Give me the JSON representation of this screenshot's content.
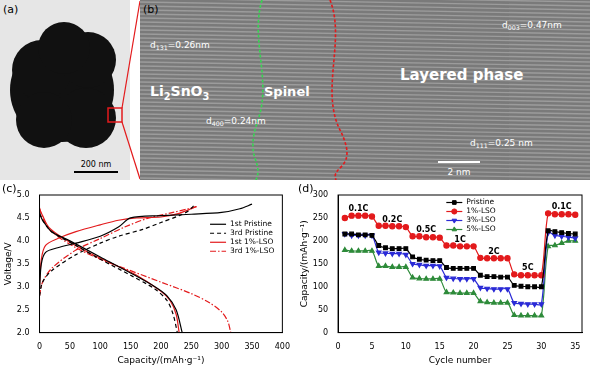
{
  "images": [
    {
      "panel": "(a)",
      "scale_bar": "200 nm"
    },
    {
      "panel": "(b)",
      "scale_bar": "2 nm",
      "labels": [
        {
          "text": "d",
          "subscript": "131",
          "after": "=0.26nm"
        },
        {
          "text": "Li2SnO3"
        },
        {
          "text": "Spinel"
        },
        {
          "text": "Layered phase"
        },
        {
          "text": "d",
          "subscript": "003",
          "after": "=0.47nm"
        },
        {
          "text": "d",
          "subscript": "400",
          "after": "=0.24nm"
        },
        {
          "text": "d",
          "subscript": "111",
          "after": "=0.25 nm"
        }
      ]
    }
  ],
  "chart_data": [
    {
      "type": "line",
      "panel": "(c)",
      "x_label": "Capacity/(mAh·g⁻¹)",
      "y_label": "Voltage/V",
      "xlim": [
        0,
        400
      ],
      "xticks": [
        0,
        50,
        100,
        150,
        200,
        250,
        300,
        350,
        400
      ],
      "ylim": [
        2,
        5
      ],
      "yticks": [
        {
          "value": 2,
          "label": "2.0"
        },
        2.5,
        {
          "value": 3,
          "label": "3.0"
        },
        3.5,
        {
          "value": 4,
          "label": "4.0"
        },
        4.5,
        {
          "value": 5,
          "label": "5.0"
        }
      ],
      "grid": false,
      "legend": "right",
      "series": [
        {
          "name": "1st Pristine",
          "color": "#000000",
          "line_style": "solid",
          "marker": "none",
          "x": [
            0,
            3,
            10,
            30,
            60,
            100,
            130,
            150,
            200,
            250,
            300,
            330,
            350,
            null,
            0,
            5,
            20,
            50,
            100,
            150,
            190,
            210,
            225,
            235
          ],
          "values": [
            2.95,
            3.5,
            3.75,
            3.85,
            3.95,
            4.1,
            4.3,
            4.5,
            4.55,
            4.58,
            4.62,
            4.7,
            4.8,
            null,
            4.6,
            4.45,
            4.2,
            4.0,
            3.65,
            3.3,
            3.0,
            2.8,
            2.5,
            2.0
          ]
        },
        {
          "name": "3rd Pristine",
          "color": "#000000",
          "line_style": "dashed",
          "marker": "none",
          "x": [
            0,
            5,
            20,
            60,
            100,
            130,
            170,
            200,
            230,
            245,
            255,
            null,
            0,
            5,
            20,
            60,
            100,
            150,
            190,
            210,
            220,
            227
          ],
          "values": [
            2.8,
            3.1,
            3.35,
            3.7,
            3.95,
            4.1,
            4.25,
            4.4,
            4.55,
            4.65,
            4.78,
            null,
            4.6,
            4.45,
            4.2,
            3.9,
            3.6,
            3.25,
            2.95,
            2.7,
            2.4,
            2.0
          ]
        },
        {
          "name": "1st 1%-LSO",
          "color": "#e31a1c",
          "line_style": "solid",
          "marker": "none",
          "x": [
            0,
            3,
            10,
            30,
            60,
            100,
            130,
            160,
            200,
            230,
            250,
            258,
            null,
            0,
            5,
            15,
            40,
            80,
            120,
            160,
            200,
            215,
            225,
            230
          ],
          "values": [
            3.0,
            3.6,
            3.9,
            4.05,
            4.2,
            4.35,
            4.45,
            4.5,
            4.52,
            4.6,
            4.7,
            4.75,
            null,
            4.7,
            4.55,
            4.3,
            4.05,
            3.75,
            3.5,
            3.25,
            2.9,
            2.7,
            2.4,
            2.0
          ]
        },
        {
          "name": "3rd 1%-LSO",
          "color": "#e31a1c",
          "line_style": "dashdot",
          "marker": "none",
          "x": [
            0,
            5,
            20,
            60,
            100,
            140,
            180,
            220,
            245,
            260,
            null,
            0,
            5,
            20,
            60,
            100,
            140,
            200,
            250,
            280,
            300,
            310,
            315
          ],
          "values": [
            2.8,
            3.1,
            3.4,
            3.8,
            4.05,
            4.3,
            4.5,
            4.62,
            4.7,
            4.75,
            null,
            4.72,
            4.5,
            4.2,
            3.85,
            3.6,
            3.4,
            3.1,
            2.85,
            2.65,
            2.45,
            2.25,
            2.0
          ]
        }
      ]
    },
    {
      "type": "line",
      "panel": "(d)",
      "x_label": "Cycle number",
      "y_label": "Capacity/(mAh·g⁻¹)",
      "xlim": [
        0,
        36
      ],
      "xticks": [
        0,
        5,
        10,
        15,
        20,
        25,
        30,
        35
      ],
      "ylim": [
        0,
        300
      ],
      "yticks": [
        0,
        50,
        100,
        150,
        200,
        250,
        300
      ],
      "grid": false,
      "legend": "top",
      "x": [
        1,
        2,
        3,
        4,
        5,
        6,
        7,
        8,
        9,
        10,
        11,
        12,
        13,
        14,
        15,
        16,
        17,
        18,
        19,
        20,
        21,
        22,
        23,
        24,
        25,
        26,
        27,
        28,
        29,
        30,
        31,
        32,
        33,
        34,
        35
      ],
      "series": [
        {
          "name": "Pristine",
          "color": "#000000",
          "marker": "square",
          "line_style": "solid",
          "values": [
            215,
            215,
            213,
            213,
            212,
            190,
            185,
            183,
            183,
            183,
            165,
            160,
            158,
            157,
            157,
            142,
            140,
            140,
            140,
            140,
            125,
            122,
            122,
            121,
            121,
            103,
            101,
            100,
            100,
            100,
            222,
            220,
            218,
            216,
            215
          ]
        },
        {
          "name": "1%-LSO",
          "color": "#e31a1c",
          "marker": "circle",
          "line_style": "solid",
          "values": [
            250,
            255,
            255,
            255,
            253,
            233,
            233,
            232,
            232,
            230,
            210,
            210,
            208,
            208,
            207,
            190,
            190,
            188,
            188,
            188,
            163,
            162,
            162,
            162,
            162,
            127,
            125,
            125,
            125,
            125,
            260,
            258,
            258,
            258,
            257
          ]
        },
        {
          "name": "3%-LSO",
          "color": "#2b2bd6",
          "marker": "triangle_down",
          "line_style": "solid",
          "values": [
            215,
            212,
            212,
            212,
            212,
            175,
            173,
            172,
            172,
            170,
            150,
            148,
            146,
            146,
            145,
            120,
            118,
            117,
            117,
            117,
            98,
            96,
            95,
            95,
            95,
            65,
            63,
            62,
            62,
            62,
            218,
            212,
            210,
            208,
            206
          ]
        },
        {
          "name": "5%-LSO",
          "color": "#2e8b3a",
          "marker": "triangle",
          "line_style": "solid",
          "values": [
            180,
            178,
            178,
            178,
            178,
            145,
            145,
            143,
            143,
            143,
            120,
            118,
            117,
            117,
            117,
            88,
            87,
            86,
            86,
            86,
            68,
            66,
            65,
            65,
            65,
            38,
            37,
            37,
            37,
            37,
            188,
            190,
            195,
            200,
            200
          ]
        }
      ],
      "annotations": [
        {
          "text": "0.1C",
          "x": 3,
          "y": 270
        },
        {
          "text": "0.2C",
          "x": 8,
          "y": 246
        },
        {
          "text": "0.5C",
          "x": 13,
          "y": 223
        },
        {
          "text": "1C",
          "x": 18,
          "y": 201
        },
        {
          "text": "2C",
          "x": 23,
          "y": 176
        },
        {
          "text": "5C",
          "x": 28,
          "y": 140
        },
        {
          "text": "0.1C",
          "x": 33,
          "y": 273
        }
      ]
    }
  ]
}
